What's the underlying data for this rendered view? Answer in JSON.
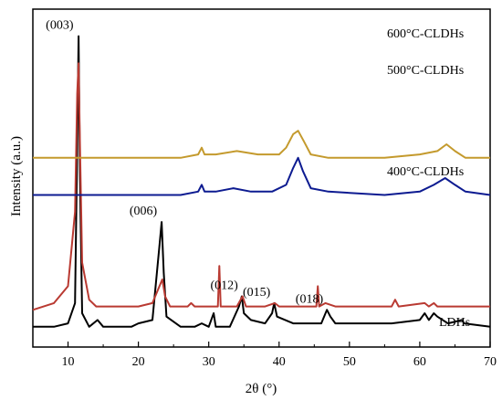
{
  "chart_data": {
    "type": "line",
    "xlabel": "2θ (°)",
    "ylabel": "Intensity (a.u.)",
    "xlim": [
      5,
      70
    ],
    "x_ticks": [
      10,
      20,
      30,
      40,
      50,
      60,
      70
    ],
    "y_ticks_shown": false,
    "grid": false,
    "legend": "none",
    "series": [
      {
        "name": "LDHs",
        "color": "#000000",
        "baseline": 0,
        "points": [
          [
            5,
            0.06
          ],
          [
            8,
            0.06
          ],
          [
            10,
            0.07
          ],
          [
            11,
            0.13
          ],
          [
            11.3,
            0.6
          ],
          [
            11.5,
            0.92
          ],
          [
            11.7,
            0.5
          ],
          [
            12,
            0.1
          ],
          [
            13,
            0.06
          ],
          [
            14.2,
            0.08
          ],
          [
            15,
            0.06
          ],
          [
            19,
            0.06
          ],
          [
            20,
            0.07
          ],
          [
            22,
            0.08
          ],
          [
            23,
            0.3
          ],
          [
            23.3,
            0.37
          ],
          [
            23.6,
            0.22
          ],
          [
            24,
            0.09
          ],
          [
            26,
            0.06
          ],
          [
            28,
            0.06
          ],
          [
            29,
            0.07
          ],
          [
            30,
            0.06
          ],
          [
            30.7,
            0.1
          ],
          [
            31,
            0.06
          ],
          [
            33,
            0.06
          ],
          [
            34.3,
            0.12
          ],
          [
            34.7,
            0.15
          ],
          [
            35,
            0.1
          ],
          [
            36,
            0.08
          ],
          [
            38,
            0.07
          ],
          [
            39,
            0.1
          ],
          [
            39.3,
            0.13
          ],
          [
            39.7,
            0.09
          ],
          [
            42,
            0.07
          ],
          [
            45,
            0.07
          ],
          [
            46,
            0.07
          ],
          [
            46.8,
            0.11
          ],
          [
            47.3,
            0.09
          ],
          [
            48,
            0.07
          ],
          [
            52,
            0.07
          ],
          [
            56,
            0.07
          ],
          [
            60,
            0.08
          ],
          [
            60.7,
            0.1
          ],
          [
            61.3,
            0.08
          ],
          [
            62,
            0.1
          ],
          [
            62.5,
            0.09
          ],
          [
            64,
            0.07
          ],
          [
            66,
            0.08
          ],
          [
            66.3,
            0.07
          ],
          [
            70,
            0.06
          ]
        ]
      },
      {
        "name": "400°C-CLDHs",
        "color": "#b93a32",
        "points": [
          [
            5,
            0.11
          ],
          [
            8,
            0.13
          ],
          [
            10,
            0.18
          ],
          [
            11,
            0.4
          ],
          [
            11.3,
            0.75
          ],
          [
            11.5,
            0.84
          ],
          [
            11.7,
            0.6
          ],
          [
            12,
            0.25
          ],
          [
            13,
            0.14
          ],
          [
            14,
            0.12
          ],
          [
            20,
            0.12
          ],
          [
            22,
            0.13
          ],
          [
            23,
            0.18
          ],
          [
            23.4,
            0.2
          ],
          [
            23.8,
            0.15
          ],
          [
            24.5,
            0.12
          ],
          [
            27,
            0.12
          ],
          [
            27.5,
            0.13
          ],
          [
            28,
            0.12
          ],
          [
            31.3,
            0.12
          ],
          [
            31.5,
            0.24
          ],
          [
            31.7,
            0.12
          ],
          [
            34,
            0.12
          ],
          [
            34.8,
            0.15
          ],
          [
            35.3,
            0.12
          ],
          [
            38,
            0.12
          ],
          [
            39.4,
            0.13
          ],
          [
            40,
            0.12
          ],
          [
            42,
            0.12
          ],
          [
            44,
            0.12
          ],
          [
            45.3,
            0.12
          ],
          [
            45.5,
            0.18
          ],
          [
            45.7,
            0.12
          ],
          [
            46.6,
            0.13
          ],
          [
            48,
            0.12
          ],
          [
            56,
            0.12
          ],
          [
            56.5,
            0.14
          ],
          [
            57,
            0.12
          ],
          [
            60.7,
            0.13
          ],
          [
            61.3,
            0.12
          ],
          [
            62,
            0.13
          ],
          [
            62.5,
            0.12
          ],
          [
            70,
            0.12
          ]
        ]
      },
      {
        "name": "500°C-CLDHs",
        "color": "#0d1b91",
        "points": [
          [
            5,
            0.45
          ],
          [
            20,
            0.45
          ],
          [
            26,
            0.45
          ],
          [
            28.5,
            0.46
          ],
          [
            29,
            0.48
          ],
          [
            29.4,
            0.46
          ],
          [
            31,
            0.46
          ],
          [
            33.5,
            0.47
          ],
          [
            36,
            0.46
          ],
          [
            39,
            0.46
          ],
          [
            41,
            0.48
          ],
          [
            42,
            0.53
          ],
          [
            42.7,
            0.56
          ],
          [
            43.4,
            0.52
          ],
          [
            44.5,
            0.47
          ],
          [
            47,
            0.46
          ],
          [
            55,
            0.45
          ],
          [
            60,
            0.46
          ],
          [
            62,
            0.48
          ],
          [
            63.6,
            0.5
          ],
          [
            65,
            0.48
          ],
          [
            66.5,
            0.46
          ],
          [
            70,
            0.45
          ]
        ]
      },
      {
        "name": "600°C-CLDHs",
        "color": "#c49a2d",
        "points": [
          [
            5,
            0.56
          ],
          [
            20,
            0.56
          ],
          [
            26,
            0.56
          ],
          [
            28.5,
            0.57
          ],
          [
            29,
            0.59
          ],
          [
            29.4,
            0.57
          ],
          [
            31,
            0.57
          ],
          [
            34,
            0.58
          ],
          [
            37,
            0.57
          ],
          [
            40,
            0.57
          ],
          [
            41,
            0.59
          ],
          [
            42,
            0.63
          ],
          [
            42.7,
            0.64
          ],
          [
            43.5,
            0.61
          ],
          [
            44.5,
            0.57
          ],
          [
            47,
            0.56
          ],
          [
            55,
            0.56
          ],
          [
            60,
            0.57
          ],
          [
            62.5,
            0.58
          ],
          [
            63.8,
            0.6
          ],
          [
            65,
            0.58
          ],
          [
            66.5,
            0.56
          ],
          [
            70,
            0.56
          ]
        ]
      }
    ],
    "annotations": [
      {
        "text": "(003)",
        "x": 11.4
      },
      {
        "text": "(006)",
        "x": 23.3
      },
      {
        "text": "(012)",
        "x": 34.8
      },
      {
        "text": "(015)",
        "x": 39.4
      },
      {
        "text": "(018)",
        "x": 46.9
      }
    ]
  },
  "labels": {
    "ldhs": "LDHs",
    "c400": "400°C-CLDHs",
    "c500": "500°C-CLDHs",
    "c600": "600°C-CLDHs",
    "xlabel": "2θ (°)",
    "ylabel": "Intensity (a.u.)"
  }
}
